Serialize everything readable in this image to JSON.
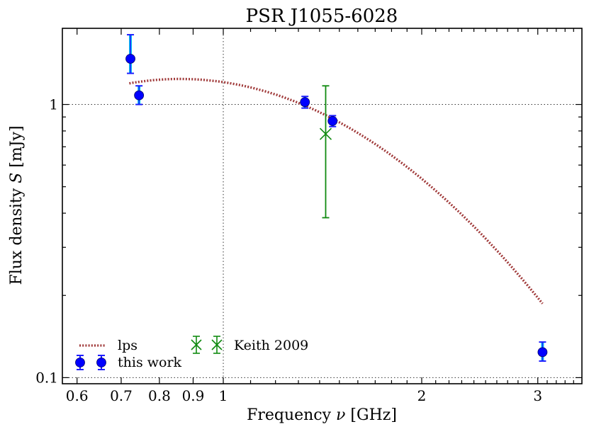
{
  "chart_data": {
    "type": "scatter",
    "title": "PSR J1055-6028",
    "xlabel_prefix": "Frequency ",
    "xlabel_symbol": "ν",
    "xlabel_suffix": " [GHz]",
    "ylabel_prefix": "Flux density ",
    "ylabel_symbol": "S",
    "ylabel_suffix": " [mJy]",
    "xscale": "log",
    "yscale": "log",
    "xlim": [
      0.57,
      3.5
    ],
    "ylim": [
      0.095,
      1.9
    ],
    "x_ticks": [
      {
        "value": 0.6,
        "label": "0.6"
      },
      {
        "value": 0.7,
        "label": "0.7"
      },
      {
        "value": 0.8,
        "label": "0.8"
      },
      {
        "value": 0.9,
        "label": "0.9"
      },
      {
        "value": 1,
        "label": "1"
      },
      {
        "value": 2,
        "label": "2"
      },
      {
        "value": 3,
        "label": "3"
      }
    ],
    "y_ticks": [
      {
        "value": 0.1,
        "label": "0.1"
      },
      {
        "value": 1,
        "label": "1"
      }
    ],
    "reference_lines": {
      "x": 1,
      "y": [
        0.1,
        1
      ]
    },
    "series": [
      {
        "name": "this work",
        "kind": "points",
        "color": "#0000ff",
        "errcolor": "#1e1eff",
        "syserrcolor": "#00c8f0",
        "points": [
          {
            "x": 0.723,
            "y": 1.47,
            "err_lo": 0.17,
            "err_hi": 0.33
          },
          {
            "x": 0.745,
            "y": 1.08,
            "err_lo": 0.08,
            "err_hi": 0.09
          },
          {
            "x": 1.33,
            "y": 1.02,
            "err_lo": 0.05,
            "err_hi": 0.05
          },
          {
            "x": 1.465,
            "y": 0.87,
            "err_lo": 0.04,
            "err_hi": 0.04
          },
          {
            "x": 3.05,
            "y": 0.124,
            "err_lo": 0.009,
            "err_hi": 0.011
          }
        ]
      },
      {
        "name": "Keith 2009",
        "kind": "points",
        "color": "#108a10",
        "marker": "x",
        "points": [
          {
            "x": 1.43,
            "y": 0.78,
            "err_lo": 0.395,
            "err_hi": 0.39
          }
        ]
      },
      {
        "name": "lps",
        "kind": "curve",
        "color": "#a03a3a",
        "x_range": [
          0.72,
          3.05
        ],
        "coefficients": {
          "peak_x": 0.86,
          "peak_y": 1.24,
          "curvature": -2.72
        }
      }
    ],
    "legend": {
      "placement": "bottom-left",
      "entries": [
        {
          "label": "lps",
          "series": "lps"
        },
        {
          "label": "this work",
          "series": "this work"
        },
        {
          "label": "Keith 2009",
          "series": "Keith 2009"
        }
      ]
    }
  }
}
